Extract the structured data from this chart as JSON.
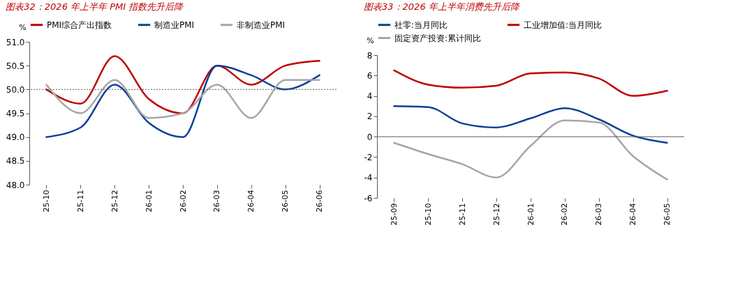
{
  "chart_data": [
    {
      "type": "line",
      "title": "图表32：2026 年上半年 PMI 指数先升后降",
      "ylabel": "%",
      "categories": [
        "25-10",
        "25-11",
        "25-12",
        "26-01",
        "26-02",
        "26-03",
        "26-04",
        "26-05",
        "26-06"
      ],
      "series": [
        {
          "name": "PMI综合产出指数",
          "color": "#c00000",
          "values": [
            50.0,
            49.7,
            50.7,
            49.8,
            49.5,
            50.5,
            50.1,
            50.5,
            50.6
          ]
        },
        {
          "name": "制造业PMI",
          "color": "#0b3f9a",
          "values": [
            49.0,
            49.2,
            50.1,
            49.3,
            49.0,
            50.5,
            50.3,
            50.0,
            50.3
          ]
        },
        {
          "name": "非制造业PMI",
          "color": "#a6a6a6",
          "values": [
            50.1,
            49.5,
            50.2,
            49.4,
            49.5,
            50.1,
            49.4,
            50.2,
            50.2
          ]
        }
      ],
      "ylim": [
        48.0,
        51.0
      ],
      "yticks": [
        {
          "value": 48,
          "label": "48.0"
        },
        48.5,
        {
          "value": 49,
          "label": "49.0"
        },
        49.5,
        {
          "value": 50,
          "label": "50.0"
        },
        50.5,
        {
          "value": 51,
          "label": "51.0"
        }
      ],
      "legend": "top",
      "ref_lines": [
        {
          "axis": "y",
          "value": 50,
          "color": "#595959",
          "line_style": "dotted"
        }
      ]
    },
    {
      "type": "line",
      "title": "图表33：2026 年上半年消费先升后降",
      "ylabel": "%",
      "categories": [
        "25-09",
        "25-10",
        "25-11",
        "25-12",
        "26-01",
        "26-02",
        "26-03",
        "26-04",
        "26-05"
      ],
      "series": [
        {
          "name": "社零:当月同比",
          "color": "#0b3f9a",
          "values": [
            3.0,
            2.9,
            1.3,
            0.9,
            1.8,
            2.8,
            1.7,
            0.1,
            -0.6
          ]
        },
        {
          "name": "工业增加值:当月同比",
          "color": "#c00000",
          "values": [
            6.5,
            5.1,
            4.8,
            5.0,
            6.2,
            6.3,
            5.7,
            4.0,
            4.5
          ]
        },
        {
          "name": "固定资产投资:累计同比",
          "color": "#a6a6a6",
          "values": [
            -0.6,
            -1.7,
            -2.7,
            -4.0,
            -0.9,
            1.6,
            1.4,
            -1.9,
            -4.2
          ]
        }
      ],
      "ylim": [
        -6,
        8
      ],
      "yticks": [
        -6,
        -4,
        -2,
        0,
        2,
        4,
        6,
        8
      ],
      "legend": "top",
      "ref_lines": [
        {
          "axis": "y",
          "value": 0,
          "color": "#595959",
          "line_style": "solid"
        }
      ]
    }
  ]
}
